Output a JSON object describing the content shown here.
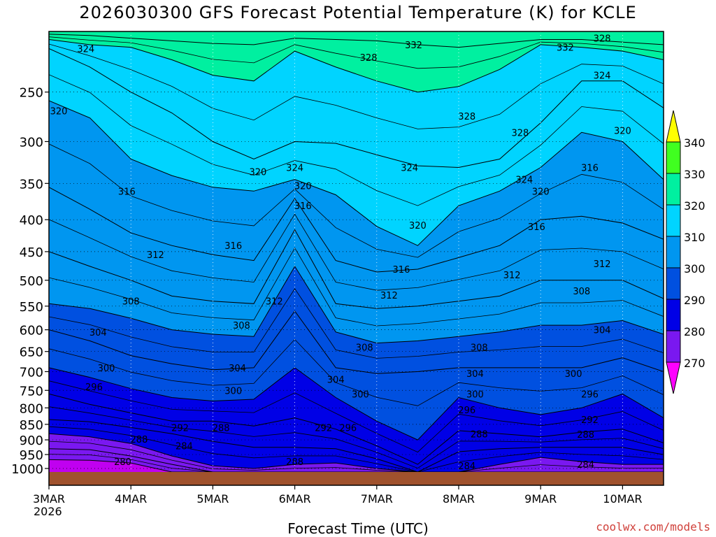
{
  "chart_data": {
    "type": "heatmap",
    "title": "2026030300 GFS Forecast Potential Temperature (K) for KCLE",
    "xlabel": "Forecast Time (UTC)",
    "ylabel": "",
    "credit": "coolwx.com/models",
    "x_ticks": [
      "3MAR",
      "4MAR",
      "5MAR",
      "6MAR",
      "7MAR",
      "8MAR",
      "9MAR",
      "10MAR"
    ],
    "x_year": "2026",
    "y_ticks": [
      250,
      300,
      350,
      400,
      450,
      500,
      550,
      600,
      650,
      700,
      750,
      800,
      850,
      900,
      950,
      1000
    ],
    "y_range": [
      200,
      1013
    ],
    "y_scale": "log-pressure",
    "x_range_days": [
      0,
      7.5
    ],
    "grid": true,
    "legend_position": "right",
    "colorbar": {
      "levels": [
        270,
        280,
        290,
        300,
        310,
        320,
        330,
        340
      ],
      "colors": [
        "#ff00ff",
        "#c000f0",
        "#7a18f0",
        "#0000e6",
        "#0050e0",
        "#0096f0",
        "#00d4ff",
        "#00f0a0",
        "#40ff20",
        "#ffff00"
      ]
    },
    "contour_interval": 4,
    "isentropes": [
      {
        "theta": 280,
        "pressure": [
          968,
          970,
          980,
          1013,
          1013,
          1013,
          1013,
          1013,
          1013,
          1013,
          1013,
          1013,
          1013,
          1013,
          1013,
          1013
        ]
      },
      {
        "theta": 284,
        "pressure": [
          930,
          933,
          955,
          985,
          1013,
          1013,
          1013,
          1013,
          1013,
          1013,
          1013,
          1013,
          1013,
          1013,
          1013,
          1013
        ]
      },
      {
        "theta": 288,
        "pressure": [
          880,
          890,
          912,
          955,
          990,
          1000,
          985,
          980,
          1000,
          1013,
          1013,
          985,
          960,
          975,
          985,
          985
        ]
      },
      {
        "theta": 292,
        "pressure": [
          835,
          842,
          860,
          880,
          905,
          925,
          925,
          930,
          965,
          1013,
          940,
          930,
          925,
          925,
          925,
          950
        ]
      },
      {
        "theta": 296,
        "pressure": [
          760,
          790,
          815,
          840,
          840,
          855,
          830,
          865,
          920,
          985,
          870,
          880,
          890,
          875,
          865,
          910
        ]
      },
      {
        "theta": 300,
        "pressure": [
          690,
          715,
          745,
          770,
          780,
          775,
          690,
          770,
          840,
          900,
          770,
          800,
          820,
          800,
          760,
          830
        ]
      },
      {
        "theta": 304,
        "pressure": [
          600,
          625,
          660,
          680,
          695,
          690,
          560,
          690,
          705,
          700,
          690,
          690,
          690,
          690,
          665,
          700
        ]
      },
      {
        "theta": 308,
        "pressure": [
          545,
          555,
          575,
          600,
          610,
          615,
          475,
          605,
          630,
          625,
          615,
          605,
          590,
          590,
          580,
          610
        ]
      },
      {
        "theta": 312,
        "pressure": [
          450,
          475,
          500,
          530,
          540,
          545,
          415,
          545,
          555,
          550,
          540,
          530,
          500,
          500,
          500,
          535
        ]
      },
      {
        "theta": 316,
        "pressure": [
          355,
          385,
          420,
          440,
          455,
          465,
          370,
          465,
          485,
          480,
          460,
          440,
          400,
          395,
          405,
          430
        ]
      },
      {
        "theta": 320,
        "pressure": [
          258,
          275,
          320,
          340,
          355,
          360,
          345,
          365,
          410,
          440,
          380,
          360,
          330,
          290,
          300,
          345
        ]
      },
      {
        "theta": 324,
        "pressure": [
          213,
          228,
          250,
          270,
          300,
          320,
          300,
          302,
          315,
          328,
          330,
          320,
          280,
          240,
          240,
          265
        ]
      },
      {
        "theta": 328,
        "pressure": [
          206,
          210,
          212,
          222,
          235,
          240,
          215,
          228,
          240,
          250,
          245,
          230,
          210,
          212,
          215,
          222
        ]
      },
      {
        "theta": 332,
        "pressure": [
          202,
          203,
          205,
          207,
          209,
          210,
          205,
          206,
          207,
          210,
          212,
          209,
          206,
          206,
          208,
          210
        ]
      }
    ],
    "x_days": [
      0,
      0.5,
      1,
      1.5,
      2,
      2.5,
      3,
      3.5,
      4,
      4.5,
      5,
      5.5,
      6,
      6.5,
      7,
      7.5
    ],
    "contour_labels": [
      {
        "text": "324",
        "day": 0.45,
        "p": 213
      },
      {
        "text": "320",
        "day": 0.12,
        "p": 268
      },
      {
        "text": "316",
        "day": 0.95,
        "p": 360
      },
      {
        "text": "312",
        "day": 1.3,
        "p": 455
      },
      {
        "text": "316",
        "day": 2.25,
        "p": 440
      },
      {
        "text": "308",
        "day": 1.0,
        "p": 540
      },
      {
        "text": "304",
        "day": 0.6,
        "p": 605
      },
      {
        "text": "300",
        "day": 0.7,
        "p": 690
      },
      {
        "text": "296",
        "day": 0.55,
        "p": 740
      },
      {
        "text": "300",
        "day": 2.25,
        "p": 750
      },
      {
        "text": "304",
        "day": 2.3,
        "p": 690
      },
      {
        "text": "308",
        "day": 2.35,
        "p": 590
      },
      {
        "text": "312",
        "day": 2.75,
        "p": 540
      },
      {
        "text": "320",
        "day": 2.55,
        "p": 335
      },
      {
        "text": "292",
        "day": 1.6,
        "p": 860
      },
      {
        "text": "288",
        "day": 2.1,
        "p": 860
      },
      {
        "text": "288",
        "day": 1.1,
        "p": 897
      },
      {
        "text": "284",
        "day": 1.65,
        "p": 920
      },
      {
        "text": "280",
        "day": 0.9,
        "p": 975
      },
      {
        "text": "324",
        "day": 3.0,
        "p": 330
      },
      {
        "text": "320",
        "day": 3.1,
        "p": 353
      },
      {
        "text": "316",
        "day": 3.1,
        "p": 380
      },
      {
        "text": "304",
        "day": 3.5,
        "p": 720
      },
      {
        "text": "300",
        "day": 3.8,
        "p": 760
      },
      {
        "text": "296",
        "day": 3.65,
        "p": 860
      },
      {
        "text": "292",
        "day": 3.35,
        "p": 860
      },
      {
        "text": "288",
        "day": 3.0,
        "p": 975
      },
      {
        "text": "308",
        "day": 3.85,
        "p": 640
      },
      {
        "text": "312",
        "day": 4.15,
        "p": 528
      },
      {
        "text": "316",
        "day": 4.3,
        "p": 480
      },
      {
        "text": "320",
        "day": 4.5,
        "p": 408
      },
      {
        "text": "324",
        "day": 4.4,
        "p": 330
      },
      {
        "text": "328",
        "day": 3.9,
        "p": 220
      },
      {
        "text": "332",
        "day": 4.45,
        "p": 210
      },
      {
        "text": "328",
        "day": 5.1,
        "p": 273
      },
      {
        "text": "328",
        "day": 5.75,
        "p": 290
      },
      {
        "text": "324",
        "day": 5.8,
        "p": 345
      },
      {
        "text": "320",
        "day": 6.0,
        "p": 360
      },
      {
        "text": "316",
        "day": 5.95,
        "p": 410
      },
      {
        "text": "312",
        "day": 5.65,
        "p": 490
      },
      {
        "text": "308",
        "day": 5.25,
        "p": 640
      },
      {
        "text": "304",
        "day": 5.2,
        "p": 705
      },
      {
        "text": "300",
        "day": 5.2,
        "p": 760
      },
      {
        "text": "296",
        "day": 5.1,
        "p": 805
      },
      {
        "text": "288",
        "day": 5.25,
        "p": 880
      },
      {
        "text": "284",
        "day": 5.1,
        "p": 990
      },
      {
        "text": "332",
        "day": 6.3,
        "p": 212
      },
      {
        "text": "328",
        "day": 6.75,
        "p": 205
      },
      {
        "text": "324",
        "day": 6.75,
        "p": 235
      },
      {
        "text": "320",
        "day": 7.0,
        "p": 288
      },
      {
        "text": "316",
        "day": 6.6,
        "p": 330
      },
      {
        "text": "312",
        "day": 6.75,
        "p": 470
      },
      {
        "text": "308",
        "day": 6.5,
        "p": 520
      },
      {
        "text": "304",
        "day": 6.75,
        "p": 600
      },
      {
        "text": "300",
        "day": 6.4,
        "p": 705
      },
      {
        "text": "296",
        "day": 6.6,
        "p": 760
      },
      {
        "text": "292",
        "day": 6.6,
        "p": 835
      },
      {
        "text": "288",
        "day": 6.55,
        "p": 882
      },
      {
        "text": "284",
        "day": 6.55,
        "p": 985
      }
    ]
  }
}
